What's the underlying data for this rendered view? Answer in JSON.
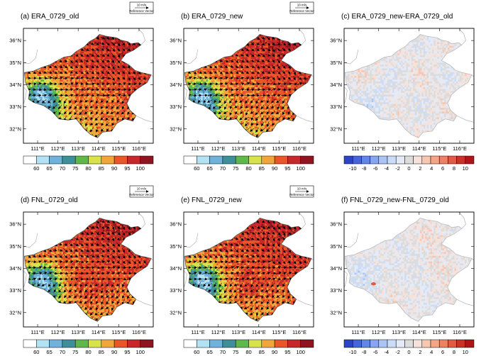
{
  "figure": {
    "panels": [
      {
        "id": "a",
        "title": "(a) ERA_0729_old",
        "kind": "abs",
        "ref_speed": "10 m/s",
        "ref_label": "Reference Vector"
      },
      {
        "id": "b",
        "title": "(b) ERA_0729_new",
        "kind": "abs",
        "ref_speed": "10 m/s",
        "ref_label": "Reference Vector"
      },
      {
        "id": "c",
        "title": "(c) ERA_0729_new-ERA_0729_old",
        "kind": "diff"
      },
      {
        "id": "d",
        "title": "(d) FNL_0729_old",
        "kind": "abs",
        "ref_speed": "10 m/s",
        "ref_label": "Reference Vector"
      },
      {
        "id": "e",
        "title": "(e) FNL_0729_new",
        "kind": "abs",
        "ref_speed": "10 m/s",
        "ref_label": "Reference Vector"
      },
      {
        "id": "f",
        "title": "(f) FNL_0729_new-FNL_0729_old",
        "kind": "diff"
      }
    ],
    "lat_ticks": [
      "32°N",
      "33°N",
      "34°N",
      "35°N",
      "36°N"
    ],
    "lon_ticks": [
      "111°E",
      "112°E",
      "113°E",
      "114°E",
      "115°E",
      "116°E"
    ],
    "abs_colorbar": {
      "labels": [
        "60",
        "65",
        "70",
        "75",
        "80",
        "85",
        "90",
        "95",
        "100"
      ],
      "colors": [
        "#ffffff",
        "#b4e2f5",
        "#6fb3dc",
        "#3f8f9a",
        "#5fb84a",
        "#d8e24a",
        "#f0a63a",
        "#e8562a",
        "#c8282a",
        "#8e1420"
      ]
    },
    "diff_colorbar": {
      "labels": [
        "-10",
        "-8",
        "-6",
        "-4",
        "-2",
        "0",
        "2",
        "4",
        "6",
        "8",
        "10"
      ],
      "colors": [
        "#2c45c7",
        "#4565dc",
        "#6285e8",
        "#86a6f0",
        "#a9c4f5",
        "#cbdcf9",
        "#e4ebf7",
        "#dcdcdc",
        "#f6e2da",
        "#f8c6b1",
        "#f4a585",
        "#ec8262",
        "#e05a44",
        "#cc3128",
        "#b01418"
      ]
    }
  }
}
